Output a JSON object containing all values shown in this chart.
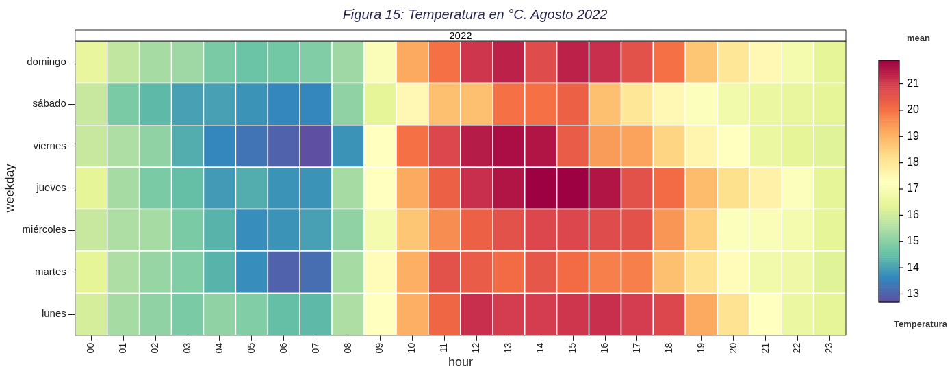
{
  "chart_data": {
    "type": "heatmap",
    "title": "Figura 15: Temperatura en °C. Agosto 2022",
    "subtitle": "2022",
    "xlabel": "hour",
    "ylabel": "weekday",
    "clabel": "mean",
    "annotations": [
      "Temperatura"
    ],
    "categories": [
      "00",
      "01",
      "02",
      "03",
      "04",
      "05",
      "06",
      "07",
      "08",
      "09",
      "10",
      "11",
      "12",
      "13",
      "14",
      "15",
      "16",
      "17",
      "18",
      "19",
      "20",
      "21",
      "22",
      "23"
    ],
    "y_categories": [
      "domingo",
      "sábado",
      "viernes",
      "jueves",
      "miércoles",
      "martes",
      "lunes"
    ],
    "cells": [
      [
        16.5,
        15.8,
        15.4,
        15.3,
        14.8,
        14.6,
        14.7,
        14.9,
        15.3,
        17.1,
        19.2,
        20.0,
        21.1,
        21.4,
        20.7,
        21.4,
        21.2,
        20.6,
        20.0,
        18.7,
        18.0,
        17.5,
        16.9,
        16.4
      ],
      [
        15.9,
        14.8,
        14.4,
        14.0,
        14.0,
        13.8,
        13.6,
        13.6,
        15.1,
        16.4,
        17.5,
        18.8,
        18.8,
        20.0,
        20.0,
        20.3,
        18.8,
        18.0,
        17.5,
        17.2,
        16.8,
        16.6,
        16.5,
        16.4
      ],
      [
        15.9,
        15.5,
        15.1,
        14.2,
        13.6,
        13.3,
        13.0,
        12.7,
        13.8,
        17.3,
        20.0,
        20.8,
        21.5,
        21.7,
        21.6,
        20.4,
        19.4,
        19.3,
        18.4,
        17.6,
        17.3,
        16.6,
        16.4,
        16.3
      ],
      [
        16.4,
        15.4,
        14.8,
        14.5,
        13.9,
        14.2,
        13.8,
        13.8,
        15.4,
        17.3,
        19.2,
        20.3,
        21.2,
        21.6,
        21.9,
        21.9,
        21.6,
        20.6,
        20.1,
        18.9,
        18.2,
        17.7,
        17.2,
        16.4
      ],
      [
        15.9,
        15.5,
        15.4,
        14.8,
        14.3,
        13.7,
        13.8,
        14.0,
        15.1,
        16.9,
        18.7,
        19.6,
        20.3,
        20.6,
        20.8,
        20.8,
        20.7,
        20.6,
        19.5,
        18.5,
        17.2,
        17.1,
        16.9,
        16.4
      ],
      [
        16.4,
        15.5,
        15.2,
        14.9,
        14.3,
        13.7,
        13.0,
        13.2,
        15.4,
        17.4,
        19.1,
        20.6,
        20.4,
        20.1,
        20.5,
        20.1,
        19.8,
        19.8,
        18.8,
        18.1,
        17.4,
        16.8,
        16.7,
        16.3
      ],
      [
        16.1,
        15.4,
        15.1,
        14.8,
        15.1,
        14.9,
        14.5,
        14.4,
        15.5,
        17.3,
        19.1,
        20.2,
        21.2,
        21.0,
        21.0,
        21.1,
        21.2,
        21.0,
        20.8,
        19.2,
        18.1,
        17.3,
        16.6,
        16.4
      ]
    ],
    "clim": [
      12.7,
      21.9
    ],
    "cticks": [
      13,
      14,
      15,
      16,
      17,
      18,
      19,
      20,
      21
    ]
  }
}
